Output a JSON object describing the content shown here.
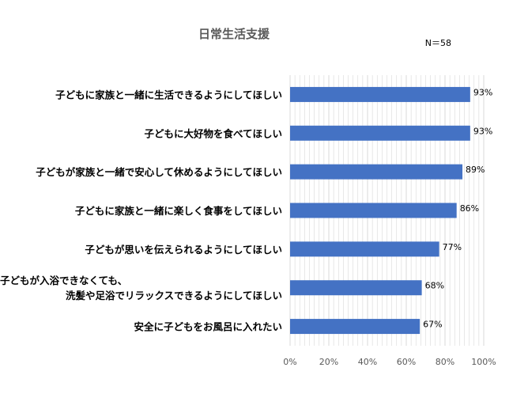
{
  "chart_data": {
    "type": "bar",
    "orientation": "horizontal",
    "title": "日常生活支援",
    "note": "N＝58",
    "categories": [
      [
        "子どもに家族と一緒に生活できるようにしてほしい"
      ],
      [
        "子どもに大好物を食べてほしい"
      ],
      [
        "子どもが家族と一緒で安心して休めるようにしてほしい"
      ],
      [
        "子どもに家族と一緒に楽しく食事をしてほしい"
      ],
      [
        "子どもが思いを伝えられるようにしてほしい"
      ],
      [
        "子どもが入浴できなくても、",
        "洗髪や足浴でリラックスできるようにしてほしい"
      ],
      [
        "安全に子どもをお風呂に入れたい"
      ]
    ],
    "values": [
      93,
      93,
      89,
      86,
      77,
      68,
      67
    ],
    "value_labels": [
      "93%",
      "93%",
      "89%",
      "86%",
      "77%",
      "68%",
      "67%"
    ],
    "xlim": [
      0,
      100
    ],
    "xticks": [
      "0%",
      "20%",
      "40%",
      "60%",
      "80%",
      "100%"
    ],
    "grid": true,
    "bar_color": "#4472c4",
    "grid_color": "#d9d9d9"
  }
}
